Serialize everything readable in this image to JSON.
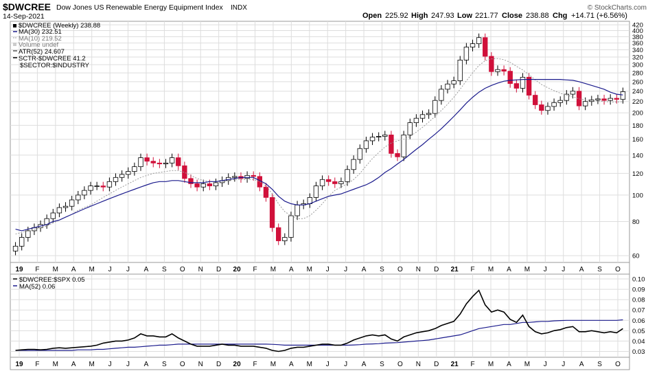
{
  "header": {
    "symbol": "$DWCREE",
    "name": "Dow Jones US Renewable Energy Equipment Index",
    "exchange": "INDX",
    "date": "14-Sep-2021",
    "open_label": "Open",
    "open": "225.92",
    "high_label": "High",
    "high": "247.93",
    "low_label": "Low",
    "low": "221.77",
    "close_label": "Close",
    "close": "238.88",
    "chg_label": "Chg",
    "chg": "+14.71 (+6.56%)",
    "watermark": "© StockCharts.com"
  },
  "legend": {
    "price": "$DWCREE (Weekly) 238.88",
    "ma30": "MA(30) 232.51",
    "ma10": "MA(10) 219.52",
    "volume": "Volume undef",
    "atr": "ATR(52) 24.607",
    "sctr": "SCTR-$DWCREE 41.2",
    "sector": "$SECTOR:$INDUSTRY"
  },
  "lower_legend": {
    "ratio": "$DWCREE:$SPX 0.05",
    "ma": "MA(52) 0.06"
  },
  "colors": {
    "up": "#ffffff",
    "down": "#d0103a",
    "ma30": "#1a1a8c",
    "ma10": "#999999",
    "grid": "#dddddd",
    "ratio": "#000000"
  },
  "chart_data": [
    {
      "type": "candlestick",
      "title": "$DWCREE (Weekly)",
      "scale": "log",
      "ylim": [
        57,
        430
      ],
      "yticks": [
        "420",
        "400",
        "380",
        "360",
        "340",
        "320",
        "300",
        "280",
        "260",
        "240",
        "220",
        "200",
        "180",
        "160",
        "140",
        "120",
        "100",
        "80",
        "60"
      ],
      "x_tick_labels": [
        "19",
        "F",
        "M",
        "A",
        "M",
        "J",
        "J",
        "A",
        "S",
        "O",
        "N",
        "D",
        "20",
        "F",
        "M",
        "A",
        "M",
        "J",
        "J",
        "A",
        "S",
        "O",
        "N",
        "D",
        "21",
        "F",
        "M",
        "A",
        "M",
        "J",
        "J",
        "A",
        "S",
        "O"
      ],
      "closes": [
        65,
        70,
        74,
        76,
        78,
        82,
        86,
        90,
        91,
        96,
        100,
        104,
        108,
        108,
        107,
        112,
        116,
        119,
        122,
        127,
        137,
        133,
        131,
        130,
        131,
        137,
        128,
        115,
        110,
        107,
        110,
        108,
        111,
        113,
        116,
        117,
        115,
        118,
        117,
        107,
        98,
        76,
        68,
        70,
        84,
        92,
        93,
        98,
        108,
        114,
        112,
        110,
        112,
        124,
        135,
        148,
        158,
        163,
        164,
        166,
        142,
        138,
        166,
        184,
        191,
        197,
        199,
        222,
        244,
        255,
        262,
        312,
        348,
        358,
        377,
        322,
        283,
        288,
        284,
        256,
        246,
        270,
        232,
        214,
        204,
        211,
        218,
        222,
        234,
        240,
        212,
        220,
        223,
        225,
        222,
        226,
        224,
        239
      ],
      "ma30": [
        75,
        74,
        75,
        76,
        77,
        78,
        80,
        81,
        83,
        85,
        87,
        89,
        91,
        93,
        95,
        97,
        99,
        101,
        103,
        105,
        107,
        109,
        111,
        112,
        112,
        113,
        113,
        112,
        111,
        111,
        111,
        112,
        112,
        113,
        114,
        115,
        116,
        116,
        116,
        113,
        110,
        105,
        99,
        95,
        93,
        92,
        92,
        93,
        95,
        97,
        99,
        100,
        101,
        103,
        105,
        107,
        109,
        112,
        116,
        121,
        125,
        130,
        135,
        141,
        147,
        153,
        160,
        167,
        175,
        184,
        194,
        205,
        217,
        228,
        238,
        246,
        252,
        257,
        261,
        263,
        264,
        265,
        265,
        265,
        265,
        265,
        265,
        265,
        264,
        263,
        260,
        256,
        252,
        248,
        244,
        238,
        234,
        232.5
      ],
      "ma10": [
        72,
        73,
        74,
        75,
        76,
        77,
        79,
        81,
        83,
        85,
        88,
        90,
        92,
        95,
        98,
        101,
        104,
        107,
        110,
        113,
        116,
        118,
        120,
        121,
        122,
        123,
        123,
        121,
        118,
        115,
        113,
        112,
        112,
        112,
        113,
        114,
        114,
        114,
        114,
        112,
        108,
        101,
        93,
        87,
        84,
        82,
        82,
        84,
        88,
        93,
        99,
        104,
        107,
        110,
        114,
        120,
        128,
        136,
        143,
        150,
        155,
        158,
        160,
        164,
        170,
        177,
        185,
        194,
        204,
        215,
        228,
        244,
        262,
        280,
        298,
        310,
        315,
        316,
        313,
        306,
        296,
        287,
        276,
        264,
        254,
        247,
        241,
        236,
        232,
        229,
        225,
        223,
        222,
        221,
        220,
        219,
        219,
        219.5
      ],
      "series": [
        {
          "name": "$DWCREE (Weekly)",
          "value": 238.88
        },
        {
          "name": "MA(30)",
          "value": 232.51
        },
        {
          "name": "MA(10)",
          "value": 219.52
        },
        {
          "name": "Volume",
          "value": "undef"
        },
        {
          "name": "ATR(52)",
          "value": 24.607
        },
        {
          "name": "SCTR-$DWCREE",
          "value": 41.2
        }
      ]
    },
    {
      "type": "line",
      "title": "$DWCREE:$SPX",
      "ylim": [
        0.025,
        0.104
      ],
      "yticks": [
        "0.10",
        "0.09",
        "0.08",
        "0.07",
        "0.06",
        "0.05",
        "0.04",
        "0.03"
      ],
      "x_tick_labels": [
        "19",
        "F",
        "M",
        "A",
        "M",
        "J",
        "J",
        "A",
        "S",
        "O",
        "N",
        "D",
        "20",
        "F",
        "M",
        "A",
        "M",
        "J",
        "J",
        "A",
        "S",
        "O",
        "N",
        "D",
        "21",
        "F",
        "M",
        "A",
        "M",
        "J",
        "J",
        "A",
        "S",
        "O"
      ],
      "series": [
        {
          "name": "$DWCREE:$SPX",
          "values": [
            0.031,
            0.0315,
            0.032,
            0.032,
            0.0315,
            0.032,
            0.033,
            0.0335,
            0.033,
            0.0335,
            0.034,
            0.0345,
            0.035,
            0.036,
            0.038,
            0.039,
            0.04,
            0.04,
            0.041,
            0.043,
            0.047,
            0.045,
            0.045,
            0.044,
            0.044,
            0.047,
            0.043,
            0.04,
            0.037,
            0.035,
            0.035,
            0.035,
            0.036,
            0.037,
            0.036,
            0.036,
            0.035,
            0.035,
            0.035,
            0.034,
            0.033,
            0.031,
            0.03,
            0.031,
            0.033,
            0.034,
            0.034,
            0.035,
            0.036,
            0.037,
            0.037,
            0.036,
            0.036,
            0.038,
            0.041,
            0.043,
            0.045,
            0.046,
            0.045,
            0.046,
            0.042,
            0.04,
            0.044,
            0.046,
            0.048,
            0.049,
            0.05,
            0.052,
            0.055,
            0.057,
            0.059,
            0.066,
            0.076,
            0.083,
            0.089,
            0.075,
            0.068,
            0.07,
            0.068,
            0.061,
            0.058,
            0.065,
            0.054,
            0.049,
            0.047,
            0.048,
            0.05,
            0.051,
            0.053,
            0.054,
            0.049,
            0.049,
            0.05,
            0.049,
            0.048,
            0.049,
            0.048,
            0.052
          ]
        },
        {
          "name": "MA(52)",
          "values": [
            0.031,
            0.031,
            0.031,
            0.031,
            0.031,
            0.031,
            0.031,
            0.031,
            0.031,
            0.031,
            0.0315,
            0.0315,
            0.0315,
            0.032,
            0.032,
            0.0325,
            0.033,
            0.0335,
            0.034,
            0.034,
            0.0345,
            0.035,
            0.0355,
            0.036,
            0.036,
            0.0365,
            0.037,
            0.037,
            0.037,
            0.037,
            0.037,
            0.037,
            0.037,
            0.037,
            0.037,
            0.037,
            0.037,
            0.037,
            0.037,
            0.037,
            0.037,
            0.0368,
            0.0365,
            0.036,
            0.036,
            0.036,
            0.036,
            0.036,
            0.036,
            0.036,
            0.036,
            0.036,
            0.036,
            0.036,
            0.0362,
            0.0365,
            0.037,
            0.0372,
            0.0375,
            0.038,
            0.0383,
            0.0385,
            0.039,
            0.0395,
            0.04,
            0.0405,
            0.041,
            0.042,
            0.043,
            0.044,
            0.045,
            0.046,
            0.048,
            0.05,
            0.052,
            0.053,
            0.054,
            0.055,
            0.056,
            0.056,
            0.057,
            0.058,
            0.058,
            0.0585,
            0.059,
            0.059,
            0.0595,
            0.0598,
            0.06,
            0.06,
            0.06,
            0.06,
            0.06,
            0.06,
            0.06,
            0.06,
            0.06,
            0.0605
          ]
        }
      ]
    }
  ]
}
